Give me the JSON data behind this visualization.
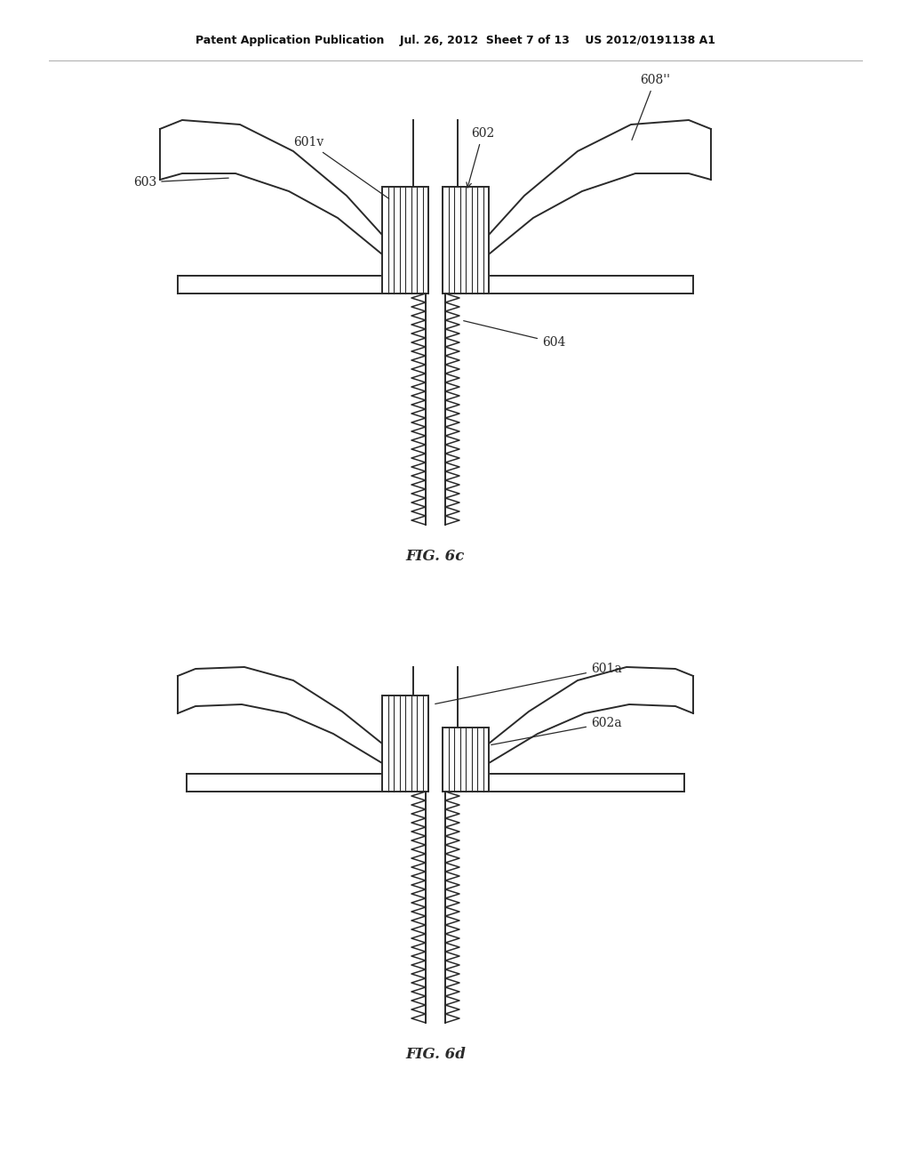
{
  "bg_color": "#ffffff",
  "line_color": "#2a2a2a",
  "header": "Patent Application Publication    Jul. 26, 2012  Sheet 7 of 13    US 2012/0191138 A1",
  "fig6c_title": "FIG. 6c",
  "fig6d_title": "FIG. 6d"
}
